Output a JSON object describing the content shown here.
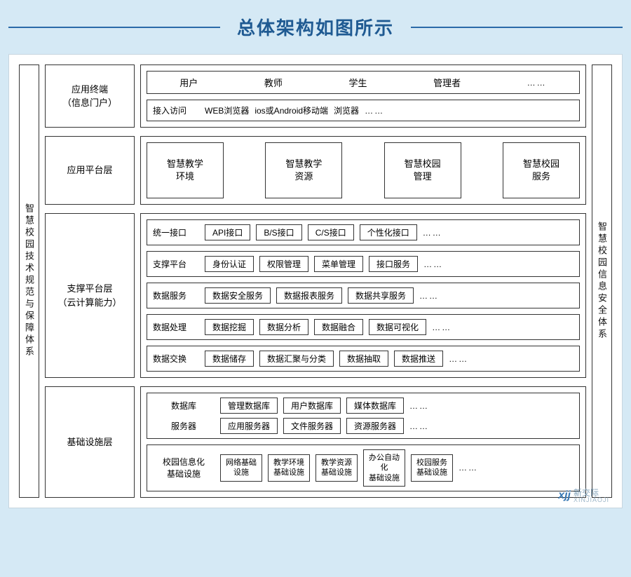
{
  "title": "总体架构如图所示",
  "colors": {
    "page_bg": "#d5e9f5",
    "title_color": "#1f5a92",
    "rule_color": "#2a6aa8",
    "canvas_bg": "#ffffff",
    "border": "#333333"
  },
  "left_pillar": "智慧校园技术规范与保障体系",
  "right_pillar": "智慧校园信息安全体系",
  "ellipsis": "……",
  "layers": {
    "terminal": {
      "label": "应用终端\n（信息门户）",
      "users": [
        "用户",
        "教师",
        "学生",
        "管理者"
      ],
      "access": {
        "lead": "接入访问",
        "items": [
          "WEB浏览器",
          "ios或Android移动端",
          "浏览器"
        ]
      }
    },
    "app_platform": {
      "label": "应用平台层",
      "boxes": [
        "智慧教学\n环境",
        "智慧教学\n资源",
        "智慧校园\n管理",
        "智慧校园\n服务"
      ]
    },
    "support": {
      "label": "支撑平台层\n（云计算能力）",
      "rows": [
        {
          "lead": "统一接口",
          "items": [
            "API接口",
            "B/S接口",
            "C/S接口",
            "个性化接口"
          ]
        },
        {
          "lead": "支撑平台",
          "items": [
            "身份认证",
            "权限管理",
            "菜单管理",
            "接口服务"
          ]
        },
        {
          "lead": "数据服务",
          "items": [
            "数据安全服务",
            "数据报表服务",
            "数据共享服务"
          ]
        },
        {
          "lead": "数据处理",
          "items": [
            "数据挖掘",
            "数据分析",
            "数据融合",
            "数据可视化"
          ]
        },
        {
          "lead": "数据交换",
          "items": [
            "数据储存",
            "数据汇聚与分类",
            "数据抽取",
            "数据推送"
          ]
        }
      ]
    },
    "infra": {
      "label": "基础设施层",
      "rows": [
        {
          "lead": "数据库",
          "items": [
            "管理数据库",
            "用户数据库",
            "媒体数据库"
          ]
        },
        {
          "lead": "服务器",
          "items": [
            "应用服务器",
            "文件服务器",
            "资源服务器"
          ]
        }
      ],
      "facilities": {
        "lead": "校园信息化\n基础设施",
        "items": [
          "网络基础\n设施",
          "教学环境\n基础设施",
          "教学资源\n基础设施",
          "办公自动化\n基础设施",
          "校园服务\n基础设施"
        ]
      }
    }
  },
  "watermark": {
    "logo": "xjj",
    "name": "新交际",
    "sub": "XINJIAOJI"
  }
}
